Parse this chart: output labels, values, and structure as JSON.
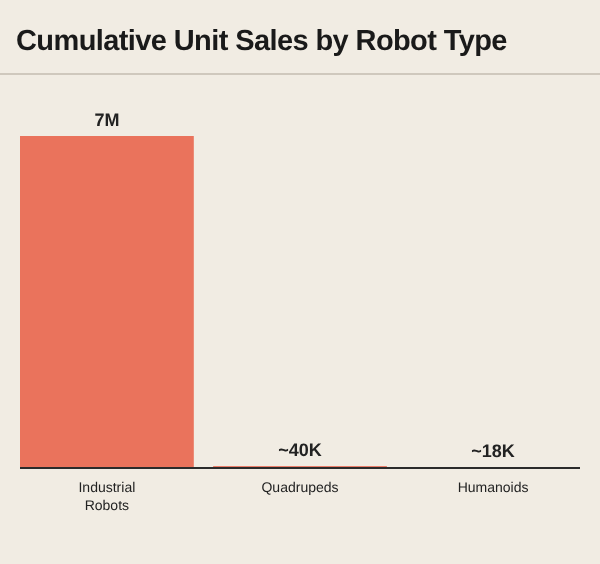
{
  "chart_data": {
    "type": "bar",
    "title": "Cumulative Unit Sales by Robot Type",
    "categories": [
      "Industrial Robots",
      "Quadrupeds",
      "Humanoids"
    ],
    "values": [
      7000000,
      40000,
      18000
    ],
    "value_labels": [
      "7M",
      "~40K",
      "~18K"
    ],
    "color": "#ea735c"
  }
}
